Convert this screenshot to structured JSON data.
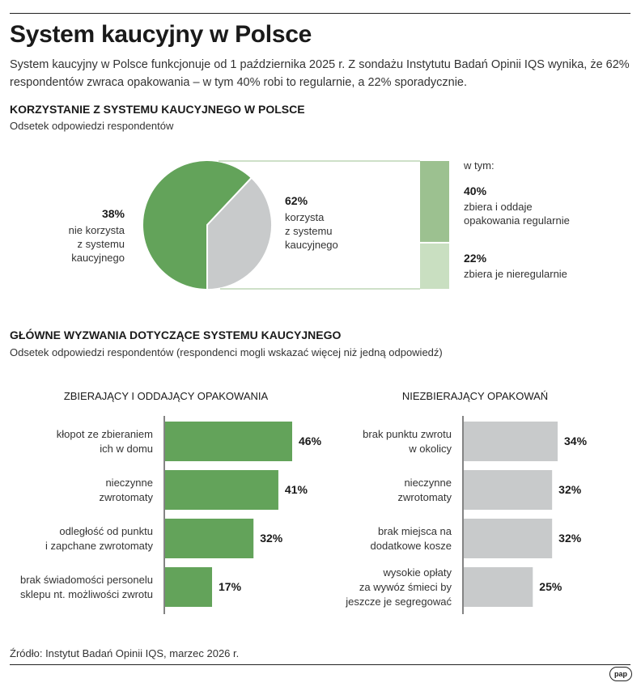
{
  "title": "System kaucyjny w Polsce",
  "intro": "System kaucyjny w Polsce funkcjonuje od 1 października 2025 r. Z sondażu Instytutu Badań Opinii IQS wynika, że 62% respondentów zwraca opakowania – w tym 40% robi to regularnie, a 22% sporadycznie.",
  "section1": {
    "title": "KORZYSTANIE Z SYSTEMU KAUCYJNEGO W POLSCE",
    "subtitle": "Odsetek odpowiedzi respondentów"
  },
  "section2": {
    "title": "GŁÓWNE WYZWANIA DOTYCZĄCE SYSTEMU KAUCYJNEGO",
    "subtitle": "Odsetek odpowiedzi respondentów (respondenci mogli wskazać więcej niż jedną odpowiedź)"
  },
  "source": "Źródło: Instytut Badań Opinii IQS, marzec 2026 r.",
  "logo": "pap",
  "colors": {
    "green": "#63a35a",
    "grey": "#c8cacb",
    "light_green_1": "#9cc190",
    "light_green_2": "#c9dfc1"
  },
  "chart_data": [
    {
      "type": "pie",
      "slices": [
        {
          "value": 62,
          "value_label": "62%",
          "label": "korzysta z systemu kaucyjnego",
          "label_lines": [
            "korzysta",
            "z systemu",
            "kaucyjnego"
          ],
          "color": "#63a35a"
        },
        {
          "value": 38,
          "value_label": "38%",
          "label": "nie korzysta z systemu kaucyjnego",
          "label_lines": [
            "nie korzysta",
            "z systemu",
            "kaucyjnego"
          ],
          "color": "#c8cacb"
        }
      ],
      "breakdown": {
        "header": "w tym:",
        "parts": [
          {
            "value": 40,
            "value_label": "40%",
            "label": "zbiera i oddaje opakowania regularnie",
            "label_lines": [
              "zbiera i oddaje",
              "opakowania regularnie"
            ],
            "color": "#9cc190"
          },
          {
            "value": 22,
            "value_label": "22%",
            "label": "zbiera je nieregularnie",
            "label_lines": [
              "zbiera je nieregularnie"
            ],
            "color": "#c9dfc1"
          }
        ]
      }
    },
    {
      "type": "bar",
      "title": "ZBIERAJĄCY I ODDAJĄCY OPAKOWANIA",
      "orientation": "horizontal",
      "color": "#63a35a",
      "xlim": [
        0,
        46
      ],
      "categories": [
        [
          "kłopot ze zbieraniem",
          "ich w domu"
        ],
        [
          "nieczynne",
          "zwrotomaty"
        ],
        [
          "odległość od punktu",
          "i zapchane zwrotomaty"
        ],
        [
          "brak świadomości personelu",
          "sklepu nt. możliwości zwrotu"
        ]
      ],
      "values": [
        46,
        41,
        32,
        17
      ],
      "value_labels": [
        "46%",
        "41%",
        "32%",
        "17%"
      ]
    },
    {
      "type": "bar",
      "title": "NIEZBIERAJĄCY OPAKOWAŃ",
      "orientation": "horizontal",
      "color": "#c8cacb",
      "xlim": [
        0,
        34
      ],
      "categories": [
        [
          "brak punktu zwrotu",
          "w okolicy"
        ],
        [
          "nieczynne",
          "zwrotomaty"
        ],
        [
          "brak miejsca na",
          "dodatkowe kosze"
        ],
        [
          "wysokie opłaty",
          "za wywóz śmieci by",
          "jeszcze je segregować"
        ]
      ],
      "values": [
        34,
        32,
        32,
        25
      ],
      "value_labels": [
        "34%",
        "32%",
        "32%",
        "25%"
      ]
    }
  ]
}
